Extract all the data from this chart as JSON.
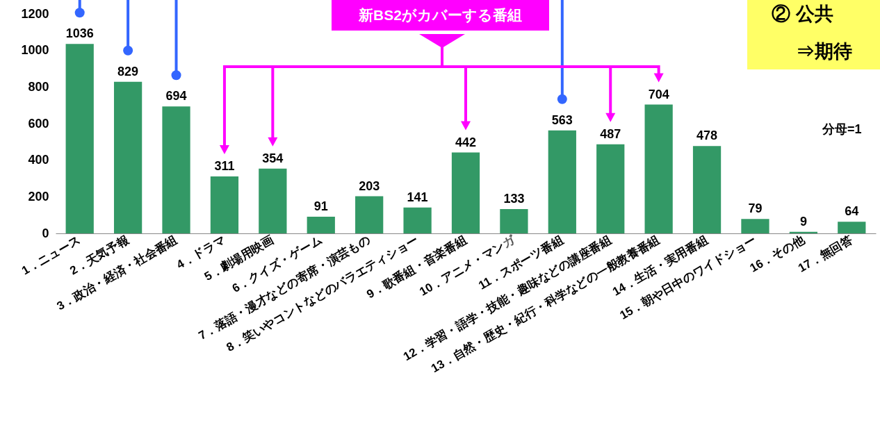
{
  "chart_data": {
    "type": "bar",
    "categories": [
      "1．ニュース",
      "2．天気予報",
      "3．政治・経済・社会番組",
      "4．ドラマ",
      "5．劇場用映画",
      "6．クイズ・ゲーム",
      "7．落語・漫才などの寄席・演芸もの",
      "8．笑いやコントなどのバラエティショー",
      "9．歌番組・音楽番組",
      "10．アニメ・マンガ",
      "11．スポーツ番組",
      "12．学習・語学・技能・趣味などの講座番組",
      "13．自然・歴史・紀行・科学などの一般教養番組",
      "14．生活・実用番組",
      "15．朝や日中のワイドショー",
      "16．その他",
      "17．無回答"
    ],
    "values": [
      1036,
      829,
      694,
      311,
      354,
      91,
      203,
      141,
      442,
      133,
      563,
      487,
      704,
      478,
      79,
      9,
      64
    ],
    "color": "#339966",
    "ylim": [
      0,
      1200
    ],
    "yticks": [
      0,
      200,
      400,
      600,
      800,
      1000,
      1200
    ],
    "data_labels": true,
    "grid": false,
    "annotations": [
      "新BS2がカバーする番組",
      "② 公共",
      "⇒期待",
      "分母=1"
    ]
  }
}
